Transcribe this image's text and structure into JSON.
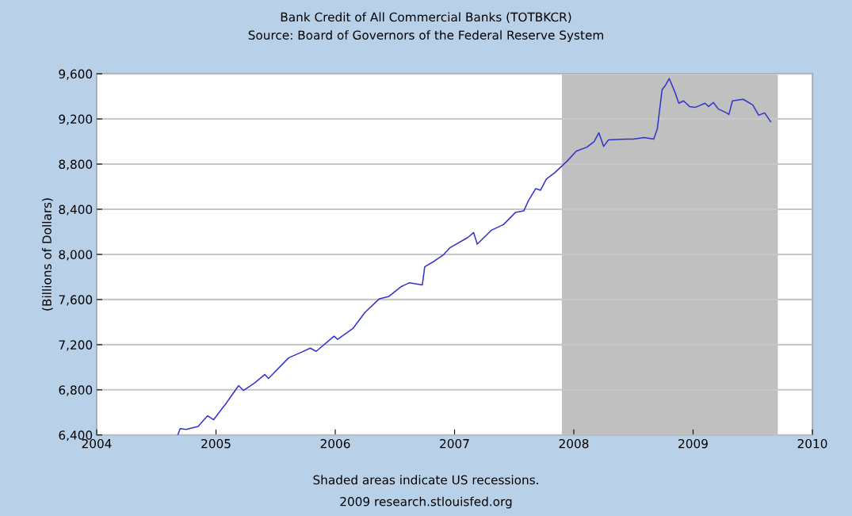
{
  "chart_data": {
    "type": "line",
    "title": "Bank Credit of All Commercial Banks (TOTBKCR)",
    "subtitle": "Source: Board of Governors of the Federal Reserve System",
    "ylabel": "(Billions of Dollars)",
    "annotations": [
      "Shaded areas indicate US recessions.",
      "2009 research.stlouisfed.org"
    ],
    "x": [
      2004.68,
      2004.7,
      2004.75,
      2004.85,
      2004.93,
      2004.98,
      2005.09,
      2005.19,
      2005.23,
      2005.32,
      2005.41,
      2005.44,
      2005.61,
      2005.72,
      2005.79,
      2005.84,
      2005.99,
      2006.02,
      2006.15,
      2006.25,
      2006.37,
      2006.45,
      2006.55,
      2006.62,
      2006.73,
      2006.75,
      2006.83,
      2006.91,
      2006.96,
      2007.11,
      2007.16,
      2007.19,
      2007.31,
      2007.41,
      2007.51,
      2007.58,
      2007.62,
      2007.68,
      2007.72,
      2007.77,
      2007.84,
      2007.89,
      2007.94,
      2008.02,
      2008.11,
      2008.17,
      2008.21,
      2008.25,
      2008.29,
      2008.44,
      2008.5,
      2008.59,
      2008.67,
      2008.7,
      2008.74,
      2008.77,
      2008.8,
      2008.85,
      2008.88,
      2008.92,
      2008.97,
      2009.02,
      2009.1,
      2009.13,
      2009.17,
      2009.21,
      2009.28,
      2009.3,
      2009.33,
      2009.42,
      2009.5,
      2009.55,
      2009.6,
      2009.65
    ],
    "series": [
      {
        "color": "#3333cc",
        "values": [
          6400,
          6456,
          6450,
          6476,
          6570,
          6535,
          6688,
          6837,
          6795,
          6858,
          6936,
          6901,
          7084,
          7135,
          7169,
          7141,
          7275,
          7247,
          7346,
          7487,
          7607,
          7628,
          7713,
          7748,
          7729,
          7890,
          7940,
          7999,
          8058,
          8149,
          8194,
          8091,
          8215,
          8264,
          8371,
          8385,
          8476,
          8582,
          8568,
          8667,
          8724,
          8773,
          8822,
          8914,
          8950,
          9000,
          9077,
          8957,
          9014,
          9021,
          9021,
          9035,
          9021,
          9112,
          9459,
          9501,
          9558,
          9431,
          9339,
          9360,
          9310,
          9303,
          9339,
          9310,
          9346,
          9289,
          9254,
          9240,
          9360,
          9374,
          9324,
          9233,
          9254,
          9176
        ]
      }
    ],
    "xlim": [
      2004,
      2010
    ],
    "xticks": [
      {
        "value": 2004,
        "label": "2004"
      },
      {
        "value": 2005,
        "label": "2005"
      },
      {
        "value": 2006,
        "label": "2006"
      },
      {
        "value": 2007,
        "label": "2007"
      },
      {
        "value": 2008,
        "label": "2008"
      },
      {
        "value": 2009,
        "label": "2009"
      },
      {
        "value": 2010,
        "label": "2010"
      }
    ],
    "ylim": [
      6400,
      9600
    ],
    "yticks": [
      {
        "value": 6400,
        "label": "6,400"
      },
      {
        "value": 6800,
        "label": "6,800"
      },
      {
        "value": 7200,
        "label": "7,200"
      },
      {
        "value": 7600,
        "label": "7,600"
      },
      {
        "value": 8000,
        "label": "8,000"
      },
      {
        "value": 8400,
        "label": "8,400"
      },
      {
        "value": 8800,
        "label": "8,800"
      },
      {
        "value": 9200,
        "label": "9,200"
      },
      {
        "value": 9600,
        "label": "9,600"
      }
    ],
    "bands": [
      {
        "axis": "x",
        "from": 2007.9,
        "to": 2009.71,
        "color": "#c0c0c0"
      }
    ],
    "grid": "y",
    "legend": false
  }
}
